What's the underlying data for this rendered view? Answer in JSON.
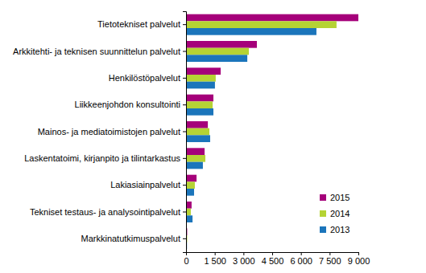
{
  "chart_data": {
    "type": "bar",
    "orientation": "horizontal",
    "categories": [
      "Tietotekniset palvelut",
      "Arkkitehti- ja teknisen suunnittelun palvelut",
      "Henkilöstöpalvelut",
      "Liikkeenjohdon konsultointi",
      "Mainos- ja mediatoimistojen palvelut",
      "Laskentatoimi, kirjanpito ja tilintarkastus",
      "Lakiasiainpalvelut",
      "Tekniset testaus- ja analysointipalvelut",
      "Markkinatutkimuspalvelut"
    ],
    "series": [
      {
        "name": "2015",
        "color": "#a5007a",
        "values": [
          9000,
          3700,
          1810,
          1430,
          1140,
          970,
          550,
          290,
          60
        ]
      },
      {
        "name": "2014",
        "color": "#b5d334",
        "values": [
          7860,
          3280,
          1550,
          1390,
          1220,
          1010,
          460,
          250,
          60
        ]
      },
      {
        "name": "2013",
        "color": "#1b75bb",
        "values": [
          6810,
          3200,
          1510,
          1430,
          1260,
          880,
          420,
          340,
          50
        ]
      }
    ],
    "xlim": [
      0,
      9000
    ],
    "xticks": [
      0,
      {
        "value": 1500,
        "label": "1 500"
      },
      {
        "value": 3000,
        "label": "3 000"
      },
      {
        "value": 4500,
        "label": "4 500"
      },
      {
        "value": 6000,
        "label": "6 000"
      },
      {
        "value": 7500,
        "label": "7 500"
      },
      {
        "value": 9000,
        "label": "9 000"
      }
    ],
    "grid": false,
    "legend": "bottom-right"
  }
}
